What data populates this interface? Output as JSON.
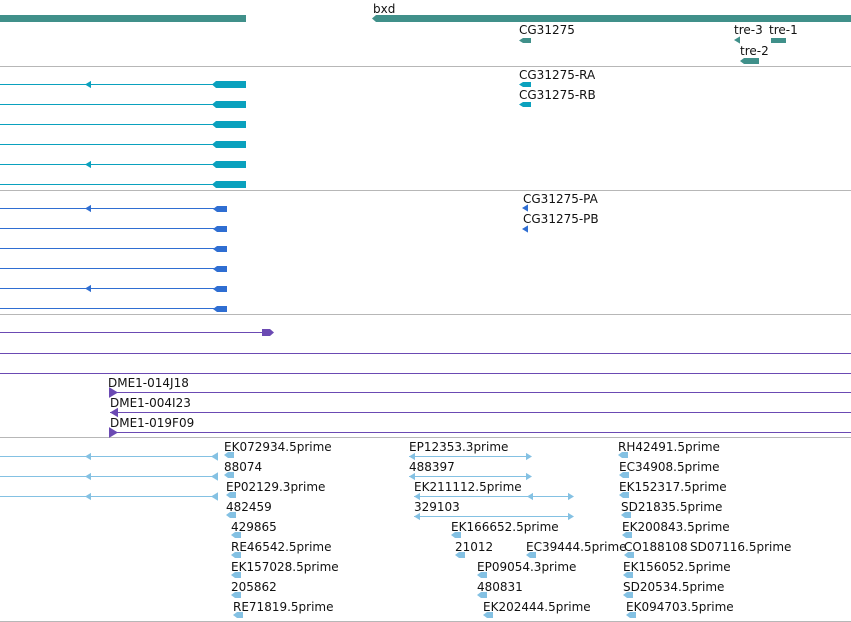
{
  "colors": {
    "gene": "#40908a",
    "transcript": "#0aa1be",
    "protein": "#2f6ed2",
    "clone": "#6b4ab3",
    "est": "#84c1e3",
    "divider": "#b7b7b7"
  },
  "tracks": {
    "gene_names": [
      "bxd",
      "CG31275",
      "tre-3",
      "tre-1",
      "tre-2"
    ],
    "transcript_names": [
      "CG31275-RA",
      "CG31275-RB"
    ],
    "protein_names": [
      "CG31275-PA",
      "CG31275-PB"
    ],
    "clone_names": [
      "DME1-014J18",
      "DME1-004I23",
      "DME1-019F09"
    ],
    "est_names": [
      "EK072934.5prime",
      "88074",
      "EP02129.3prime",
      "482459",
      "429865",
      "RE46542.5prime",
      "EK157028.5prime",
      "205862",
      "RE71819.5prime",
      "EP12353.3prime",
      "488397",
      "EK211112.5prime",
      "329103",
      "EK166652.5prime",
      "21012",
      "EC39444.5prime",
      "EP09054.3prime",
      "480831",
      "EK202444.5prime",
      "RH42491.5prime",
      "EC34908.5prime",
      "EK152317.5prime",
      "SD21835.5prime",
      "EK200843.5prime",
      "CO188108",
      "SD07116.5prime",
      "EK156052.5prime",
      "SD20534.5prime",
      "EK094703.5prime"
    ]
  }
}
